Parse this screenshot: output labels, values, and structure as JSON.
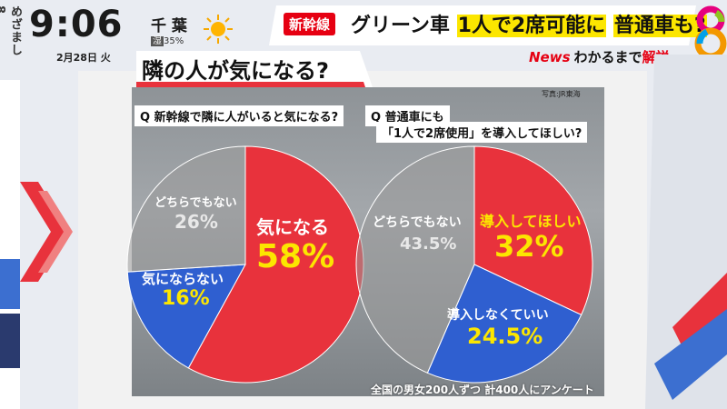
{
  "header": {
    "show_logo": "めざまし8",
    "clock": "9:06",
    "date": "2月28日 火",
    "city": "千 葉",
    "humidity_label": "湿",
    "humidity_value": "35%",
    "weather_icon": "sun-icon"
  },
  "headline": {
    "tag": "新幹線",
    "text_pre": "グリーン車 ",
    "text_hl1": "1人で2席可能に",
    "text_mid": " ",
    "text_hl2": "普通車も?",
    "news": "News",
    "sub_mid": "わかるまで",
    "sub_red": "解説"
  },
  "board": {
    "title": "隣の人が気になる?",
    "photo_credit": "写真:JR東海",
    "footer_note": "全国の男女200人ずつ 計400人にアンケート"
  },
  "chart_data": [
    {
      "type": "pie",
      "title": "Q 新幹線で隣に人がいると気になる?",
      "slices": [
        {
          "label": "気になる",
          "value": 58,
          "display": "58%",
          "color": "#e8323c"
        },
        {
          "label": "気にならない",
          "value": 16,
          "display": "16%",
          "color": "#2f5fd0"
        },
        {
          "label": "どちらでもない",
          "value": 26,
          "display": "26%",
          "color": "#9a9a9a"
        }
      ]
    },
    {
      "type": "pie",
      "title_line1": "Q 普通車にも",
      "title_line2": "「1人で2席使用」を導入してほしい?",
      "slices": [
        {
          "label": "導入してほしい",
          "value": 32,
          "display": "32%",
          "color": "#e8323c"
        },
        {
          "label": "導入しなくていい",
          "value": 24.5,
          "display": "24.5%",
          "color": "#2f5fd0"
        },
        {
          "label": "どちらでもない",
          "value": 43.5,
          "display": "43.5%",
          "color": "#9a9a9a"
        }
      ]
    }
  ]
}
